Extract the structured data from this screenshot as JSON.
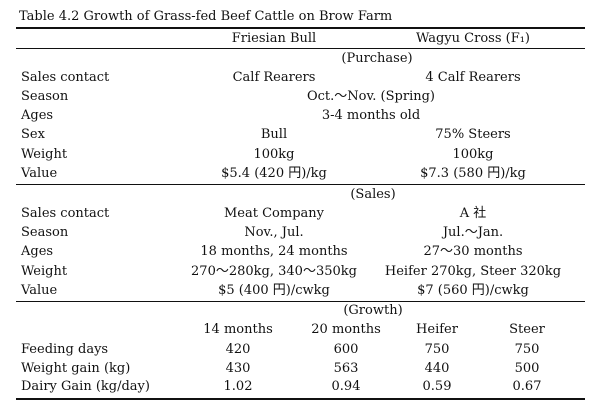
{
  "title": "Table 4.2    Growth of Grass-fed Beef Cattle on Brow Farm",
  "columns": {
    "friesian": "Friesian Bull",
    "wagyu": "Wagyu Cross (F₁)"
  },
  "purchase": {
    "section": "(Purchase)",
    "rows": [
      {
        "label": "Sales contact",
        "friesian": "Calf Rearers",
        "wagyu": "4 Calf Rearers"
      },
      {
        "label": "Season",
        "both": "Oct.～Nov. (Spring)"
      },
      {
        "label": "Ages",
        "both": "3-4 months old"
      },
      {
        "label": "Sex",
        "friesian": "Bull",
        "wagyu": "75% Steers"
      },
      {
        "label": "Weight",
        "friesian": "100kg",
        "wagyu": "100kg"
      },
      {
        "label": "Value",
        "friesian": "$5.4 (420 円)/kg",
        "wagyu": "$7.3 (580 円)/kg"
      }
    ]
  },
  "sales": {
    "section": "(Sales)",
    "rows": [
      {
        "label": "Sales contact",
        "friesian": "Meat Company",
        "wagyu": "A 社"
      },
      {
        "label": "Season",
        "friesian": "Nov., Jul.",
        "wagyu": "Jul.～Jan."
      },
      {
        "label": "Ages",
        "friesian": "18 months, 24 months",
        "wagyu": "27～30 months"
      },
      {
        "label": "Weight",
        "friesian": "270～280kg, 340～350kg",
        "wagyu": "Heifer 270kg, Steer 320kg"
      },
      {
        "label": "Value",
        "friesian": "$5 (400 円)/cwkg",
        "wagyu": "$7 (560 円)/cwkg"
      }
    ]
  },
  "growth": {
    "section": "(Growth)",
    "headers": [
      "14 months",
      "20 months",
      "Heifer",
      "Steer"
    ],
    "rows": [
      {
        "label": "Feeding days",
        "values": [
          "420",
          "600",
          "750",
          "750"
        ]
      },
      {
        "label": "Weight gain (kg)",
        "values": [
          "430",
          "563",
          "440",
          "500"
        ]
      },
      {
        "label": "Dairy Gain (kg/day)",
        "values": [
          "1.02",
          "0.94",
          "0.59",
          "0.67"
        ]
      }
    ]
  }
}
